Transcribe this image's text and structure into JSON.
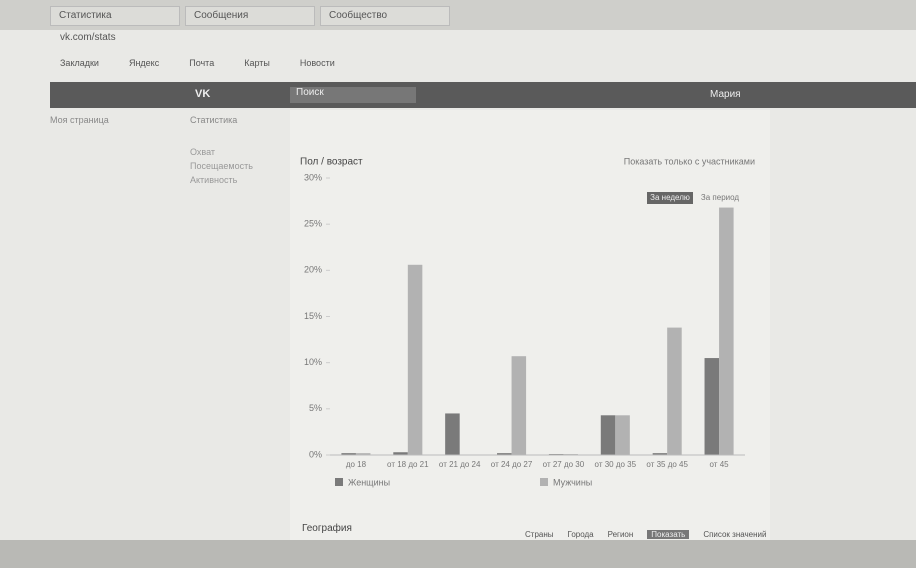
{
  "browser": {
    "tabs": [
      "Статистика",
      "Сообщения",
      "Сообщество"
    ],
    "address": "vk.com/stats",
    "bookmarks": [
      "Закладки",
      "Яндекс",
      "Почта",
      "Карты",
      "Новости"
    ]
  },
  "header": {
    "logo": "VK",
    "search": "Поиск",
    "user": "Мария"
  },
  "sidebar": {
    "links": [
      "Моя страница",
      "Статистика"
    ],
    "side_links": [
      "Охват",
      "Посещаемость",
      "Активность"
    ]
  },
  "chart_data": {
    "type": "bar",
    "title": "Пол / возраст",
    "link": "Показать только с участниками",
    "toggles": [
      "За неделю",
      "За период"
    ],
    "categories": [
      "до 18",
      "от 18 до 21",
      "от 21 до 24",
      "от 24 до 27",
      "от 27 до 30",
      "от 30 до 35",
      "от 35 до 45",
      "от 45"
    ],
    "series": [
      {
        "name": "Женщины",
        "color": "#7a7a7a",
        "values": [
          0.2,
          0.3,
          4.5,
          0.2,
          0.1,
          4.3,
          0.2,
          10.5
        ]
      },
      {
        "name": "Мужчины",
        "color": "#b2b2b2",
        "values": [
          0.2,
          20.6,
          0,
          10.7,
          0.1,
          4.3,
          13.8,
          26.8
        ]
      }
    ],
    "ylim": [
      0,
      30
    ],
    "yticks": [
      {
        "value": 0,
        "label": "0%"
      },
      {
        "value": 5,
        "label": "5%"
      },
      {
        "value": 10,
        "label": "10%"
      },
      {
        "value": 15,
        "label": "15%"
      },
      {
        "value": 20,
        "label": "20%"
      },
      {
        "value": 25,
        "label": "25%"
      },
      {
        "value": 30,
        "label": "30%"
      }
    ]
  },
  "geo": {
    "title": "География",
    "tabs": [
      "Страны",
      "Города",
      "Регион",
      "Показать",
      "Список значений"
    ]
  }
}
